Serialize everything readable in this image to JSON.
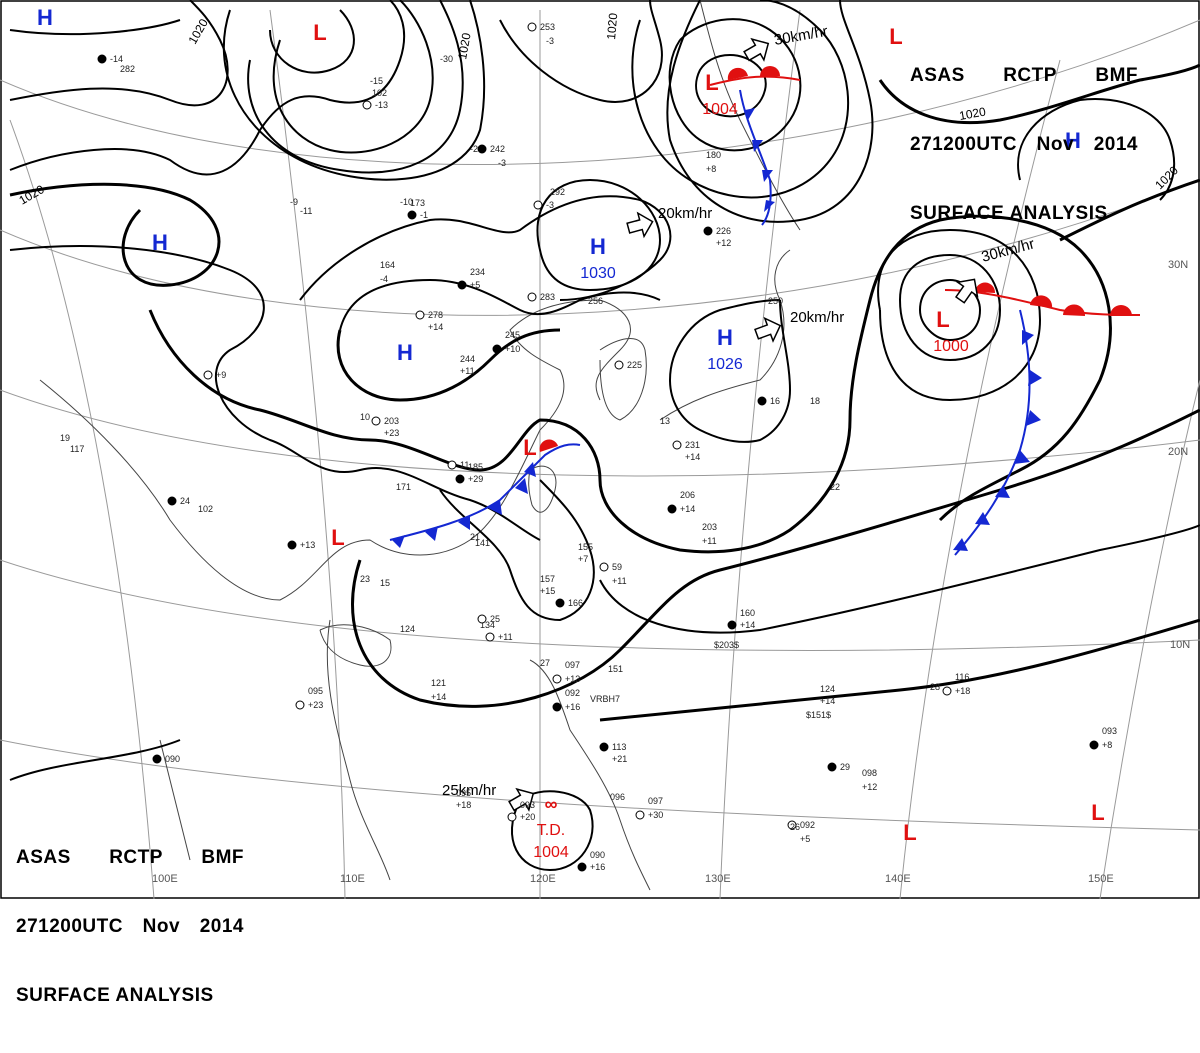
{
  "header": {
    "line1": [
      "ASAS",
      "RCTP",
      "BMF"
    ],
    "line2": [
      "271200UTC",
      "Nov",
      "2014"
    ],
    "line3": "SURFACE ANALYSIS"
  },
  "colors": {
    "high": "#1428d2",
    "low": "#e01010",
    "isobar": "#000000",
    "grid": "#9a9a9a",
    "coast": "#444444",
    "cold_front": "#1428d2",
    "warm_front": "#e01010"
  },
  "pressure_centers": [
    {
      "type": "H",
      "name": "high-china-west"
    },
    {
      "type": "H",
      "name": "high-north-china",
      "value": "1030"
    },
    {
      "type": "H",
      "name": "high-central-china"
    },
    {
      "type": "H",
      "name": "high-japan",
      "value": "1026"
    },
    {
      "type": "H",
      "name": "high-northwest"
    },
    {
      "type": "H",
      "name": "high-pacific-ne"
    },
    {
      "type": "L",
      "name": "low-north"
    },
    {
      "type": "L",
      "name": "low-manchuria",
      "value": "1004"
    },
    {
      "type": "L",
      "name": "low-pacific",
      "value": "1000"
    },
    {
      "type": "L",
      "name": "low-taiwan"
    },
    {
      "type": "L",
      "name": "low-indochina"
    },
    {
      "type": "L",
      "name": "low-corner-ne"
    },
    {
      "type": "L",
      "name": "low-pacific-s1"
    },
    {
      "type": "L",
      "name": "low-pacific-s2"
    },
    {
      "type": "TD",
      "name": "td-south-china-sea",
      "label": "T.D.",
      "value": "1004"
    }
  ],
  "movements": [
    "30km/hr",
    "20km/hr",
    "20km/hr",
    "30km/hr",
    "25km/hr"
  ],
  "isobar_labels": [
    "1020",
    "1020",
    "1020",
    "1020",
    "1020",
    "1020"
  ],
  "lat_labels": [
    "30N",
    "20N",
    "10N"
  ],
  "lon_labels": [
    "100E",
    "110E",
    "120E",
    "130E",
    "140E",
    "150E"
  ],
  "station_plots": [
    "253",
    "-3",
    "282",
    "-14",
    "-15",
    "102",
    "-13",
    "-30",
    "-21",
    "242",
    "-3",
    "292",
    "-3",
    "-10",
    "173",
    "-1",
    "-9",
    "-11",
    "278",
    "+14",
    "234",
    "+5",
    "164",
    "-4",
    "283",
    "256",
    "245",
    "+10",
    "244",
    "+11",
    "203",
    "+23",
    "185",
    "+29",
    "171",
    "141",
    "+9",
    "117",
    "102",
    "+13",
    "124",
    "134",
    "+11",
    "157",
    "+15",
    "166",
    "155",
    "+7",
    "59",
    "+11",
    "206",
    "+14",
    "203",
    "+11",
    "225",
    "180",
    "+8",
    "226",
    "+12",
    "250",
    "231",
    "+14",
    "160",
    "+14",
    "$203$",
    "097",
    "+13",
    "151",
    "092",
    "+16",
    "VRBH7",
    "095",
    "+23",
    "121",
    "+14",
    "113",
    "+21",
    "097",
    "+30",
    "096",
    "093",
    "+8",
    "098",
    "+12",
    "092",
    "+5",
    "090",
    "+16",
    "$151$",
    "116",
    "+18",
    "124",
    "+14",
    "090",
    "095",
    "+18",
    "+20",
    "093",
    "19",
    "24",
    "23",
    "21",
    "25",
    "27",
    "28",
    "29",
    "26",
    "22",
    "11",
    "13",
    "10",
    "16",
    "18",
    "15"
  ]
}
